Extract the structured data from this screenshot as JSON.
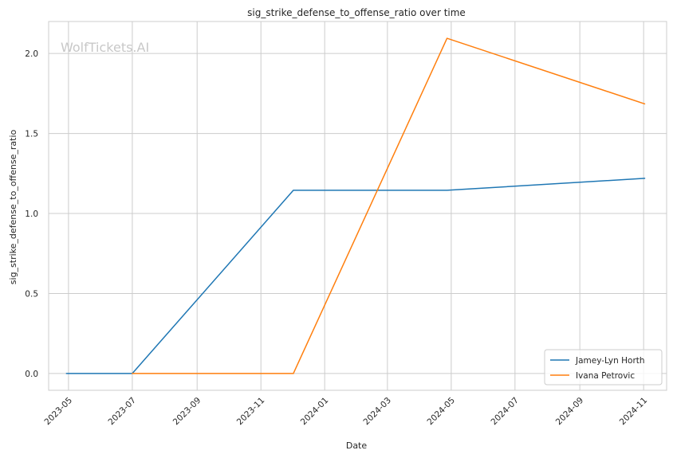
{
  "chart_data": {
    "type": "line",
    "title": "sig_strike_defense_to_offense_ratio over time",
    "xlabel": "Date",
    "ylabel": "sig_strike_defense_to_offense_ratio",
    "watermark": "WolfTickets.AI",
    "x_ticks": [
      "2023-05",
      "2023-07",
      "2023-09",
      "2023-11",
      "2024-01",
      "2024-03",
      "2024-05",
      "2024-07",
      "2024-09",
      "2024-11"
    ],
    "y_ticks": [
      "0.0",
      "0.5",
      "1.0",
      "1.5",
      "2.0"
    ],
    "xlim": [
      "2023-04-12",
      "2024-11-23"
    ],
    "ylim": [
      -0.105,
      2.2
    ],
    "grid": true,
    "legend_position": "bottom-right",
    "series": [
      {
        "name": "Jamey-Lyn Horth",
        "color": "#1f77b4",
        "points": [
          {
            "x": "2023-04-29",
            "y": 0.0
          },
          {
            "x": "2023-07-01",
            "y": 0.0
          },
          {
            "x": "2023-12-02",
            "y": 1.145
          },
          {
            "x": "2024-04-27",
            "y": 1.145
          },
          {
            "x": "2024-11-02",
            "y": 1.22
          }
        ]
      },
      {
        "name": "Ivana Petrovic",
        "color": "#ff7f0e",
        "points": [
          {
            "x": "2023-07-01",
            "y": 0.0
          },
          {
            "x": "2023-12-02",
            "y": 0.0
          },
          {
            "x": "2024-04-27",
            "y": 2.095
          },
          {
            "x": "2024-11-02",
            "y": 1.685
          }
        ]
      }
    ]
  }
}
